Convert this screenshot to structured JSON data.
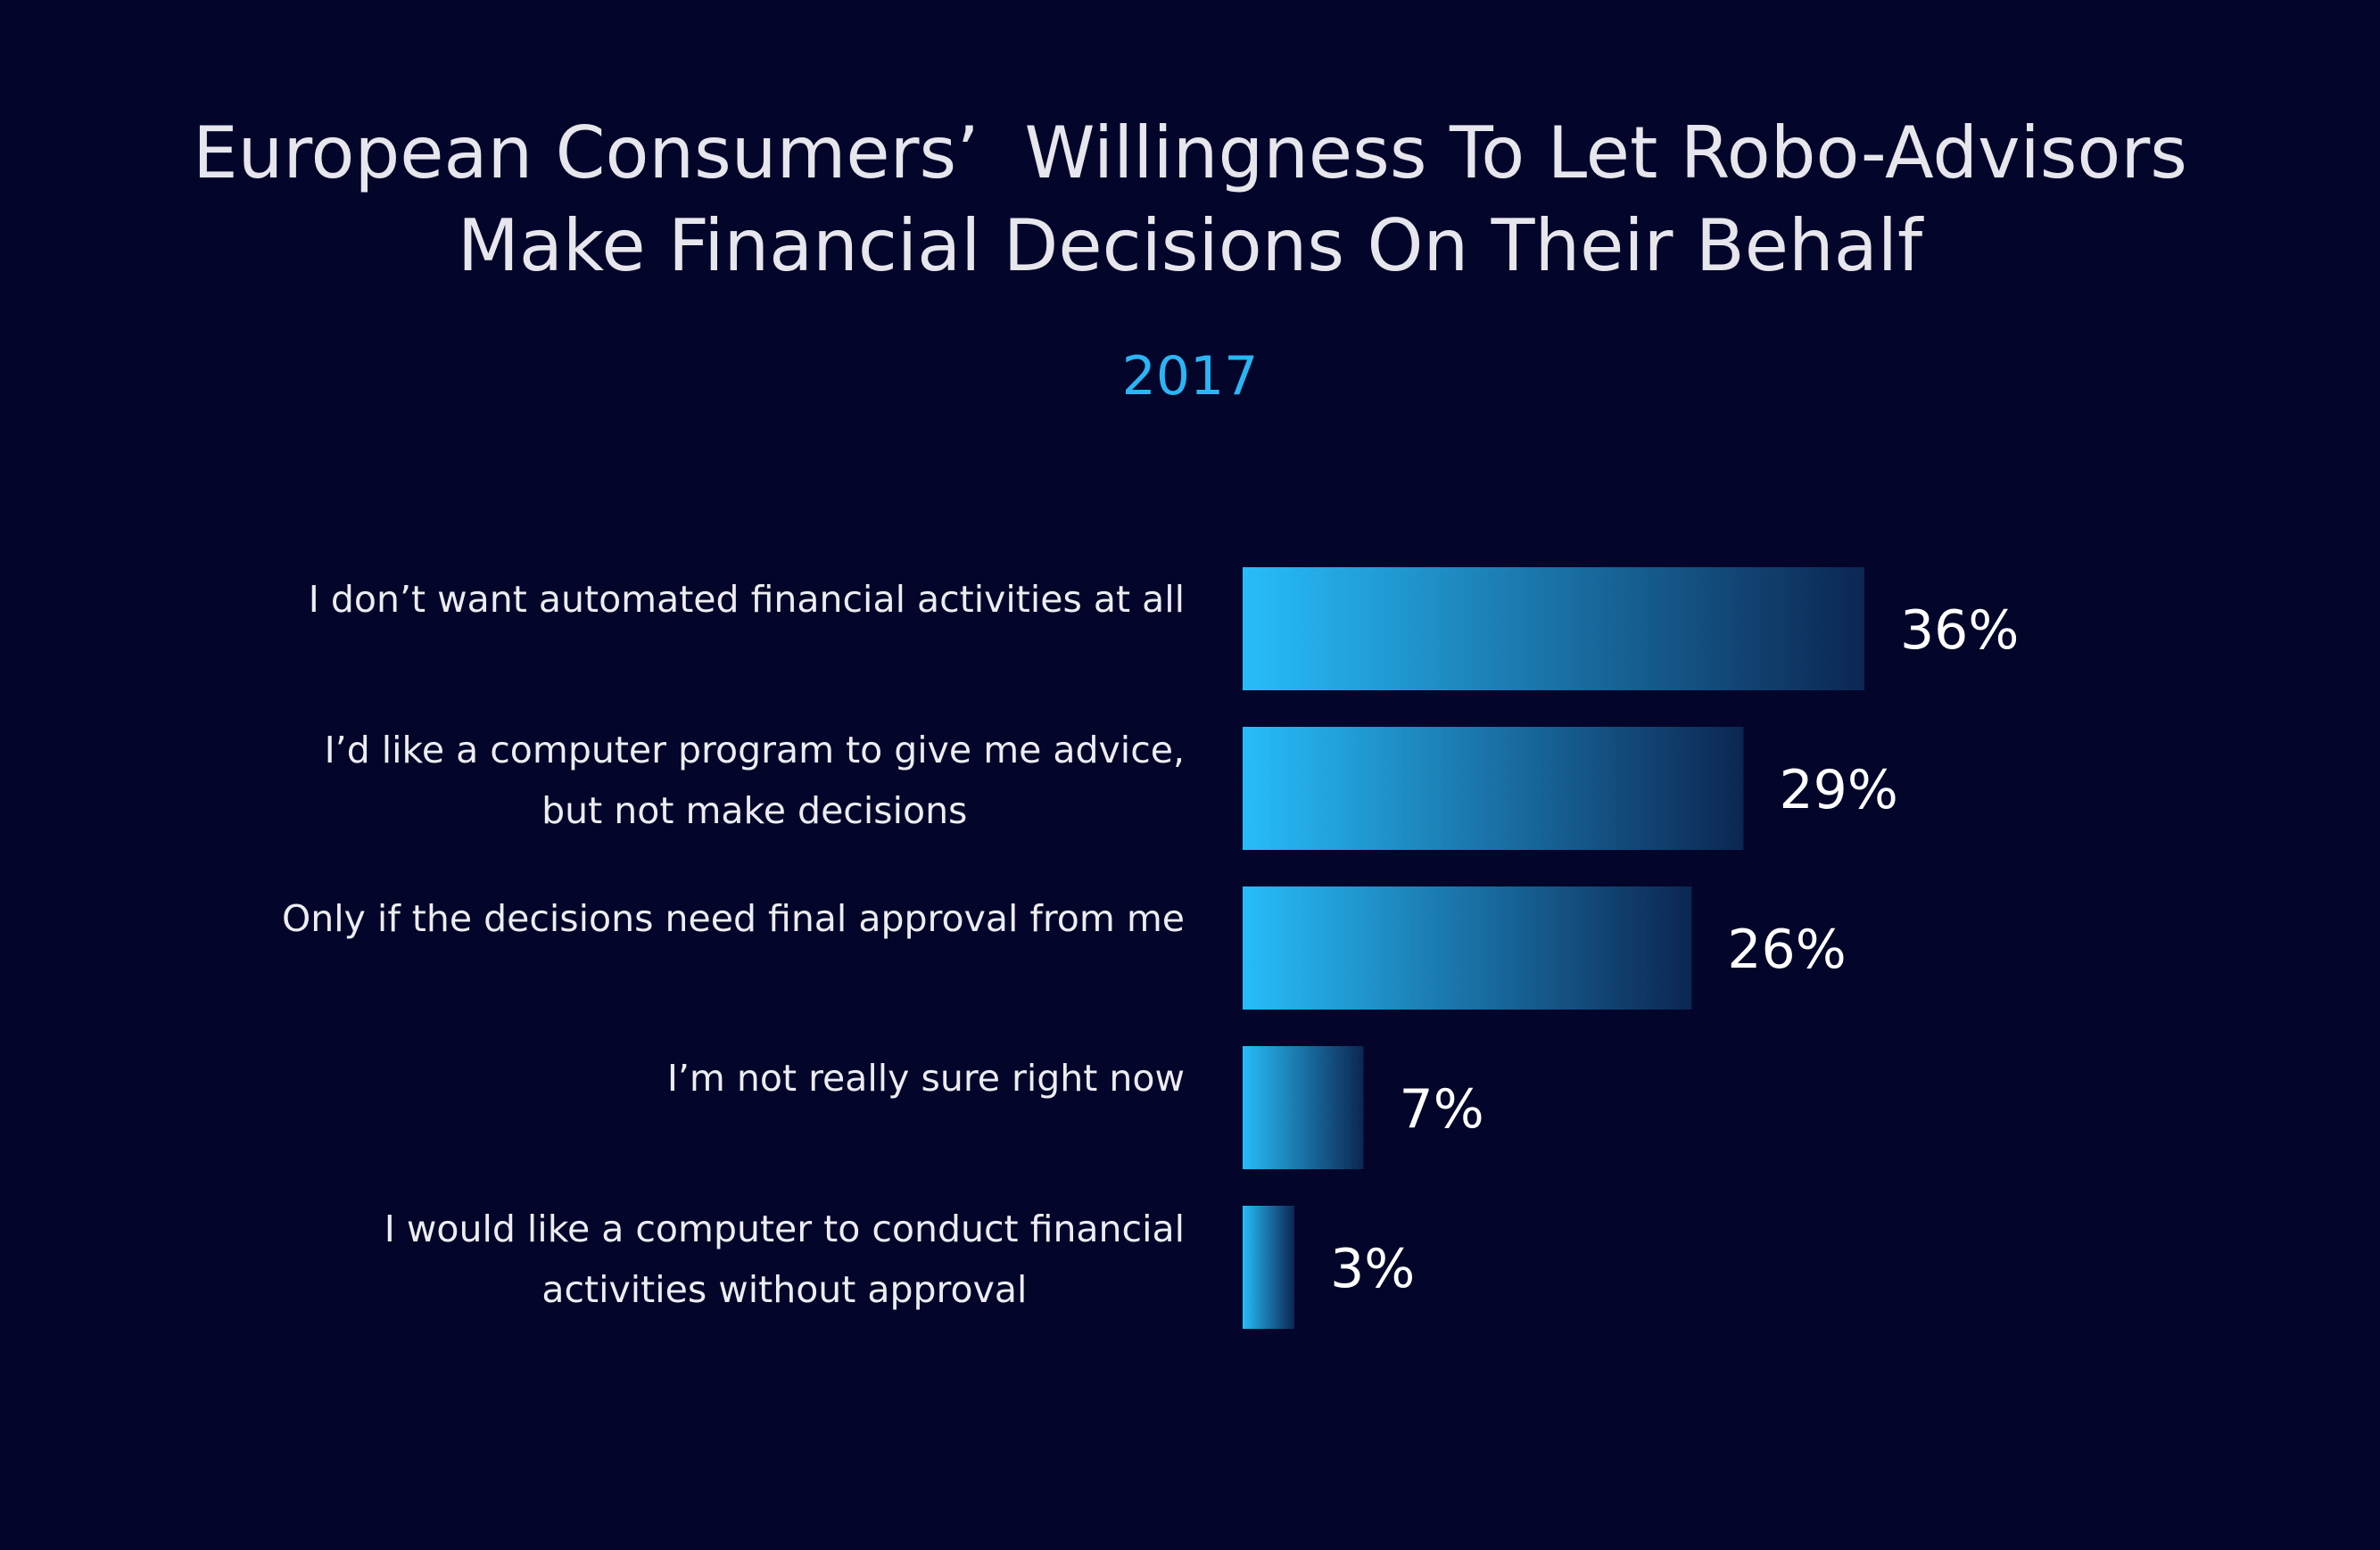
{
  "colors": {
    "background": "#03062a",
    "bar_start": "#27bdfa",
    "bar_end": "#0c2652",
    "subtitle": "#2bb5f4",
    "text": "#e8e8ee"
  },
  "chart_data": {
    "type": "bar",
    "orientation": "horizontal",
    "title_lines": [
      "European Consumers’  Willingness To Let Robo-Advisors",
      "Make Financial Decisions On Their Behalf"
    ],
    "subtitle": "2017",
    "categories": [
      [
        "I don’t want automated financial activities at all"
      ],
      [
        "I’d like a computer program to give me advice,",
        "but not make decisions"
      ],
      [
        "Only if the decisions need final approval from me"
      ],
      [
        "I’m not really sure right now"
      ],
      [
        "I would like a computer to conduct financial",
        "activities without approval"
      ]
    ],
    "values": [
      36,
      29,
      26,
      7,
      3
    ],
    "value_labels": [
      "36%",
      "29%",
      "26%",
      "7%",
      "3%"
    ],
    "unit": "%",
    "xlim": [
      0,
      36
    ],
    "grid": false,
    "legend": "none"
  }
}
